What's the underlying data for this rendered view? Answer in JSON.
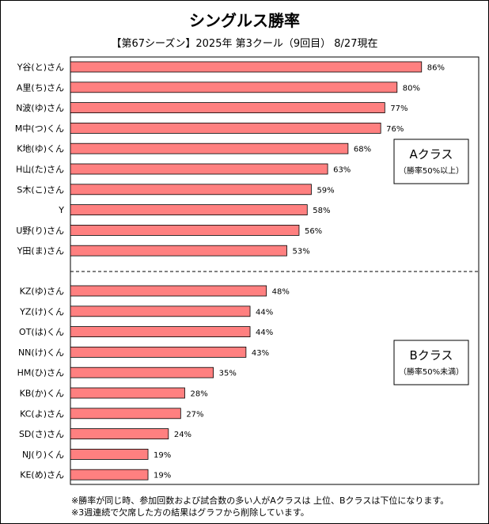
{
  "chart_data": {
    "type": "bar",
    "orientation": "horizontal",
    "title": "シングルス勝率",
    "subtitle": "【第67シーズン】2025年 第3クール（9回目） 8/27現在",
    "xlim": [
      0,
      100
    ],
    "value_suffix": "%",
    "bar_color": "#ff8080",
    "groups": [
      {
        "label": "Aクラス",
        "sublabel": "（勝率50%以上）",
        "categories": [
          "Y谷(と)さん",
          "A里(ち)さん",
          "N波(ゆ)さん",
          "M中(つ)くん",
          "K地(ゆ)くん",
          "H山(た)さん",
          "S木(こ)さん",
          "Y",
          "U野(り)さん",
          "Y田(ま)さん"
        ],
        "values": [
          86,
          80,
          77,
          76,
          68,
          63,
          59,
          58,
          56,
          53
        ]
      },
      {
        "label": "Bクラス",
        "sublabel": "（勝率50%未満）",
        "categories": [
          "KZ(ゆ)さん",
          "YZ(け)くん",
          "OT(は)くん",
          "NN(け)くん",
          "HM(ひ)さん",
          "KB(か)くん",
          "KC(よ)さん",
          "SD(さ)さん",
          "NJ(り)くん",
          "KE(め)さん"
        ],
        "values": [
          48,
          44,
          44,
          43,
          35,
          28,
          27,
          24,
          19,
          19
        ]
      }
    ]
  },
  "notes": [
    "※勝率が同じ時、参加回数および試合数の多い人がAクラスは 上位、Bクラスは下位になります。",
    "※3週連続で欠席した方の結果はグラフから削除しています。"
  ]
}
